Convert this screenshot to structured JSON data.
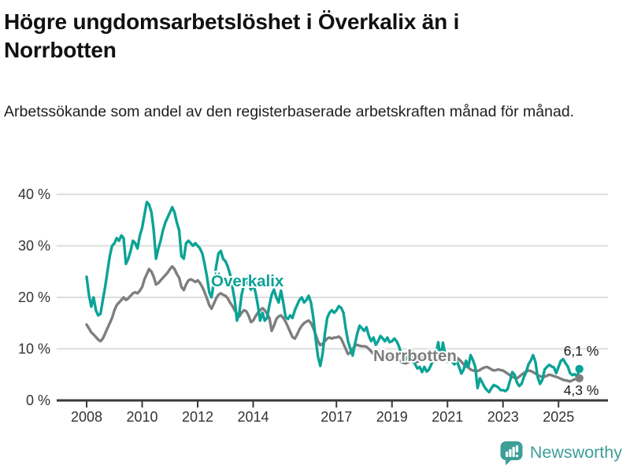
{
  "title": "Högre ungdomsarbetslöshet i Överkalix än i Norrbotten",
  "subtitle": "Arbetssökande som andel av den registerbaserade arbetskraften månad för månad.",
  "footer": {
    "brand": "Newsworthy"
  },
  "colors": {
    "overkalix": "#0ba396",
    "norrbotten": "#7e7e7e",
    "grid": "#dedede",
    "axis": "#3a3a3a",
    "axis_text": "#333333",
    "end_label_text": "#1a1a1a",
    "logo": "#3e9e98"
  },
  "chart_data": {
    "type": "line",
    "x_frequency": "monthly",
    "x_start": "2008-01",
    "x_end": "2025-10",
    "x_tick_years": [
      2008,
      2010,
      2012,
      2014,
      2017,
      2019,
      2021,
      2023,
      2025
    ],
    "y_ticks": [
      "40 %",
      "30 %",
      "20 %",
      "10 %",
      "0 %"
    ],
    "y_tick_values": [
      40,
      30,
      20,
      10,
      0
    ],
    "ylim": [
      0,
      42
    ],
    "grid": true,
    "legend_position": "inline-labels",
    "series": [
      {
        "name": "Överkalix",
        "color": "#0ba396",
        "end_label": "6,1 %",
        "end_value": 6.1,
        "values": [
          24.0,
          20.5,
          18.2,
          20.0,
          17.5,
          16.5,
          16.8,
          19.5,
          22.0,
          25.0,
          28.0,
          30.0,
          30.5,
          31.5,
          31.0,
          32.0,
          31.5,
          26.5,
          27.5,
          29.0,
          31.0,
          30.5,
          29.5,
          32.0,
          33.5,
          36.0,
          38.5,
          38.0,
          36.5,
          33.0,
          27.5,
          29.5,
          31.0,
          33.0,
          34.5,
          35.5,
          36.5,
          37.5,
          36.5,
          34.5,
          33.0,
          28.0,
          27.5,
          30.5,
          31.0,
          30.5,
          30.0,
          30.5,
          30.0,
          29.5,
          28.5,
          26.5,
          24.0,
          21.0,
          20.0,
          23.0,
          26.0,
          28.5,
          29.0,
          27.5,
          27.0,
          26.0,
          24.5,
          22.0,
          19.5,
          15.5,
          17.0,
          20.5,
          22.5,
          23.0,
          22.5,
          21.5,
          22.5,
          21.0,
          18.5,
          15.5,
          17.0,
          15.5,
          16.0,
          18.5,
          20.5,
          21.5,
          20.0,
          19.0,
          21.3,
          19.0,
          16.2,
          15.8,
          16.5,
          16.0,
          17.5,
          18.5,
          19.5,
          20.0,
          19.0,
          19.5,
          20.3,
          19.0,
          16.0,
          12.0,
          8.5,
          6.7,
          9.0,
          13.0,
          16.0,
          17.0,
          17.5,
          17.0,
          17.5,
          18.3,
          18.0,
          17.0,
          14.0,
          11.5,
          10.0,
          8.7,
          11.0,
          13.0,
          14.5,
          14.0,
          13.5,
          14.2,
          12.5,
          11.5,
          12.2,
          10.8,
          11.5,
          12.5,
          12.0,
          11.5,
          12.2,
          11.3,
          11.5,
          12.0,
          11.5,
          10.5,
          9.0,
          7.5,
          8.0,
          9.5,
          10.0,
          9.0,
          7.0,
          6.2,
          6.5,
          5.5,
          6.5,
          5.6,
          6.0,
          7.0,
          8.0,
          9.0,
          11.3,
          8.0,
          11.2,
          9.0,
          7.5,
          8.2,
          7.5,
          7.0,
          7.7,
          6.5,
          5.2,
          6.0,
          7.7,
          6.5,
          8.8,
          7.8,
          6.5,
          2.4,
          4.3,
          3.5,
          2.6,
          2.0,
          1.6,
          2.4,
          3.0,
          2.8,
          2.5,
          2.0,
          2.0,
          1.8,
          2.2,
          3.8,
          5.5,
          5.0,
          3.5,
          2.8,
          3.2,
          4.5,
          5.5,
          7.0,
          7.7,
          8.8,
          7.5,
          4.5,
          3.2,
          4.0,
          6.0,
          6.5,
          6.9,
          6.6,
          6.4,
          5.3,
          6.5,
          7.7,
          8.0,
          7.2,
          6.6,
          5.3,
          4.9,
          5.1,
          4.6,
          6.1
        ]
      },
      {
        "name": "Norrbotten",
        "color": "#7e7e7e",
        "end_label": "4,3 %",
        "end_value": 4.3,
        "values": [
          14.7,
          14.0,
          13.2,
          12.8,
          12.3,
          11.8,
          11.5,
          12.0,
          13.0,
          14.0,
          15.0,
          16.0,
          17.5,
          18.5,
          19.0,
          19.5,
          20.0,
          19.5,
          19.8,
          20.3,
          20.8,
          21.0,
          20.8,
          21.3,
          22.0,
          23.5,
          24.5,
          25.5,
          25.0,
          24.0,
          22.5,
          22.8,
          23.3,
          23.8,
          24.3,
          24.8,
          25.5,
          26.0,
          25.5,
          24.5,
          23.8,
          22.0,
          21.4,
          22.5,
          23.3,
          23.5,
          23.3,
          23.0,
          23.3,
          22.8,
          22.0,
          21.0,
          19.8,
          18.5,
          17.8,
          18.8,
          19.8,
          20.5,
          20.8,
          20.5,
          20.3,
          19.8,
          19.0,
          18.3,
          17.5,
          16.8,
          16.3,
          17.0,
          17.5,
          17.3,
          16.5,
          15.2,
          15.5,
          16.3,
          17.0,
          17.5,
          17.9,
          17.5,
          16.8,
          16.0,
          13.5,
          14.5,
          15.8,
          16.3,
          16.5,
          16.0,
          15.3,
          14.3,
          13.3,
          12.3,
          12.0,
          12.8,
          13.8,
          14.5,
          15.0,
          15.3,
          15.5,
          15.0,
          14.0,
          12.8,
          11.5,
          10.7,
          11.0,
          11.5,
          12.0,
          12.2,
          12.0,
          12.2,
          12.2,
          12.4,
          12.0,
          11.0,
          10.0,
          9.0,
          9.3,
          10.0,
          10.6,
          10.8,
          10.6,
          10.5,
          10.5,
          10.4,
          10.0,
          9.5,
          9.0,
          8.5,
          8.3,
          8.5,
          8.8,
          8.7,
          8.5,
          8.3,
          8.3,
          8.2,
          8.0,
          7.8,
          7.5,
          7.3,
          7.2,
          7.4,
          7.6,
          7.5,
          7.4,
          7.5,
          7.8,
          8.0,
          8.8,
          9.3,
          9.5,
          9.3,
          9.0,
          8.8,
          8.6,
          8.5,
          8.4,
          8.5,
          8.5,
          8.4,
          8.3,
          8.2,
          8.3,
          8.0,
          7.5,
          7.0,
          6.6,
          6.4,
          6.0,
          5.8,
          5.8,
          5.7,
          5.9,
          6.2,
          6.4,
          6.5,
          6.3,
          6.0,
          5.8,
          5.9,
          6.0,
          5.9,
          5.8,
          5.5,
          5.2,
          4.9,
          4.6,
          4.4,
          4.3,
          4.6,
          5.0,
          5.3,
          5.6,
          5.8,
          5.7,
          5.5,
          5.2,
          4.9,
          4.7,
          4.5,
          4.6,
          4.8,
          5.0,
          4.9,
          4.7,
          4.6,
          4.4,
          4.2,
          4.0,
          3.9,
          3.8,
          3.7,
          3.9,
          4.1,
          4.2,
          4.3
        ]
      }
    ]
  }
}
